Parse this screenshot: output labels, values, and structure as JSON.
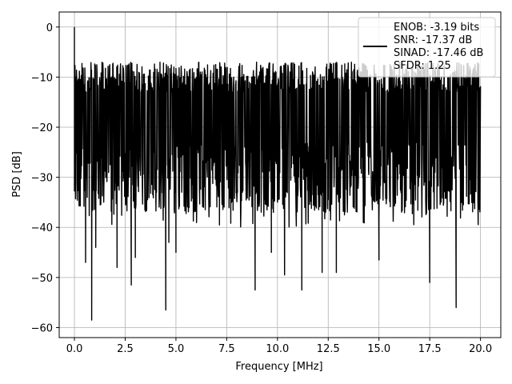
{
  "chart_data": {
    "type": "line",
    "xlabel": "Frequency [MHz]",
    "ylabel": "PSD [dB]",
    "xlim": [
      -0.75,
      21.0
    ],
    "ylim": [
      -62.0,
      3.0
    ],
    "grid": true,
    "legend_position": "top-right",
    "legend_lines": [
      "ENOB: -3.19 bits",
      "SNR: -17.37 dB",
      "SINAD: -17.46 dB",
      "SFDR: 1.25"
    ],
    "x_ticks": [
      0.0,
      2.5,
      5.0,
      7.5,
      10.0,
      12.5,
      15.0,
      17.5,
      20.0
    ],
    "x_tick_labels": [
      "0.0",
      "2.5",
      "5.0",
      "7.5",
      "10.0",
      "12.5",
      "15.0",
      "17.5",
      "20.0"
    ],
    "y_ticks": [
      0,
      -10,
      -20,
      -30,
      -40,
      -50,
      -60
    ],
    "y_tick_labels": [
      "0",
      "−10",
      "−20",
      "−30",
      "−40",
      "−50",
      "−60"
    ],
    "series": [
      {
        "color": "#000000",
        "x_range": [
          0.0,
          20.0
        ],
        "typical_level": -22,
        "envelope_top": -13,
        "envelope_bottom": -31,
        "spikes": [
          {
            "x": 0.0,
            "y": 0.0
          },
          {
            "x": 0.06,
            "y": -10.0
          },
          {
            "x": 0.12,
            "y": -20.0
          },
          {
            "x": 0.55,
            "y": -47.0
          },
          {
            "x": 0.85,
            "y": -58.5
          },
          {
            "x": 1.05,
            "y": -44.0
          },
          {
            "x": 2.1,
            "y": -48.0
          },
          {
            "x": 2.8,
            "y": -51.5
          },
          {
            "x": 3.0,
            "y": -46.0
          },
          {
            "x": 4.5,
            "y": -56.5
          },
          {
            "x": 4.65,
            "y": -43.0
          },
          {
            "x": 5.0,
            "y": -45.0
          },
          {
            "x": 8.9,
            "y": -52.5
          },
          {
            "x": 9.7,
            "y": -45.0
          },
          {
            "x": 10.35,
            "y": -49.5
          },
          {
            "x": 11.2,
            "y": -52.5
          },
          {
            "x": 12.2,
            "y": -49.0
          },
          {
            "x": 12.9,
            "y": -49.0
          },
          {
            "x": 15.0,
            "y": -46.5
          },
          {
            "x": 17.5,
            "y": -51.0
          },
          {
            "x": 18.8,
            "y": -56.0
          }
        ]
      }
    ]
  }
}
